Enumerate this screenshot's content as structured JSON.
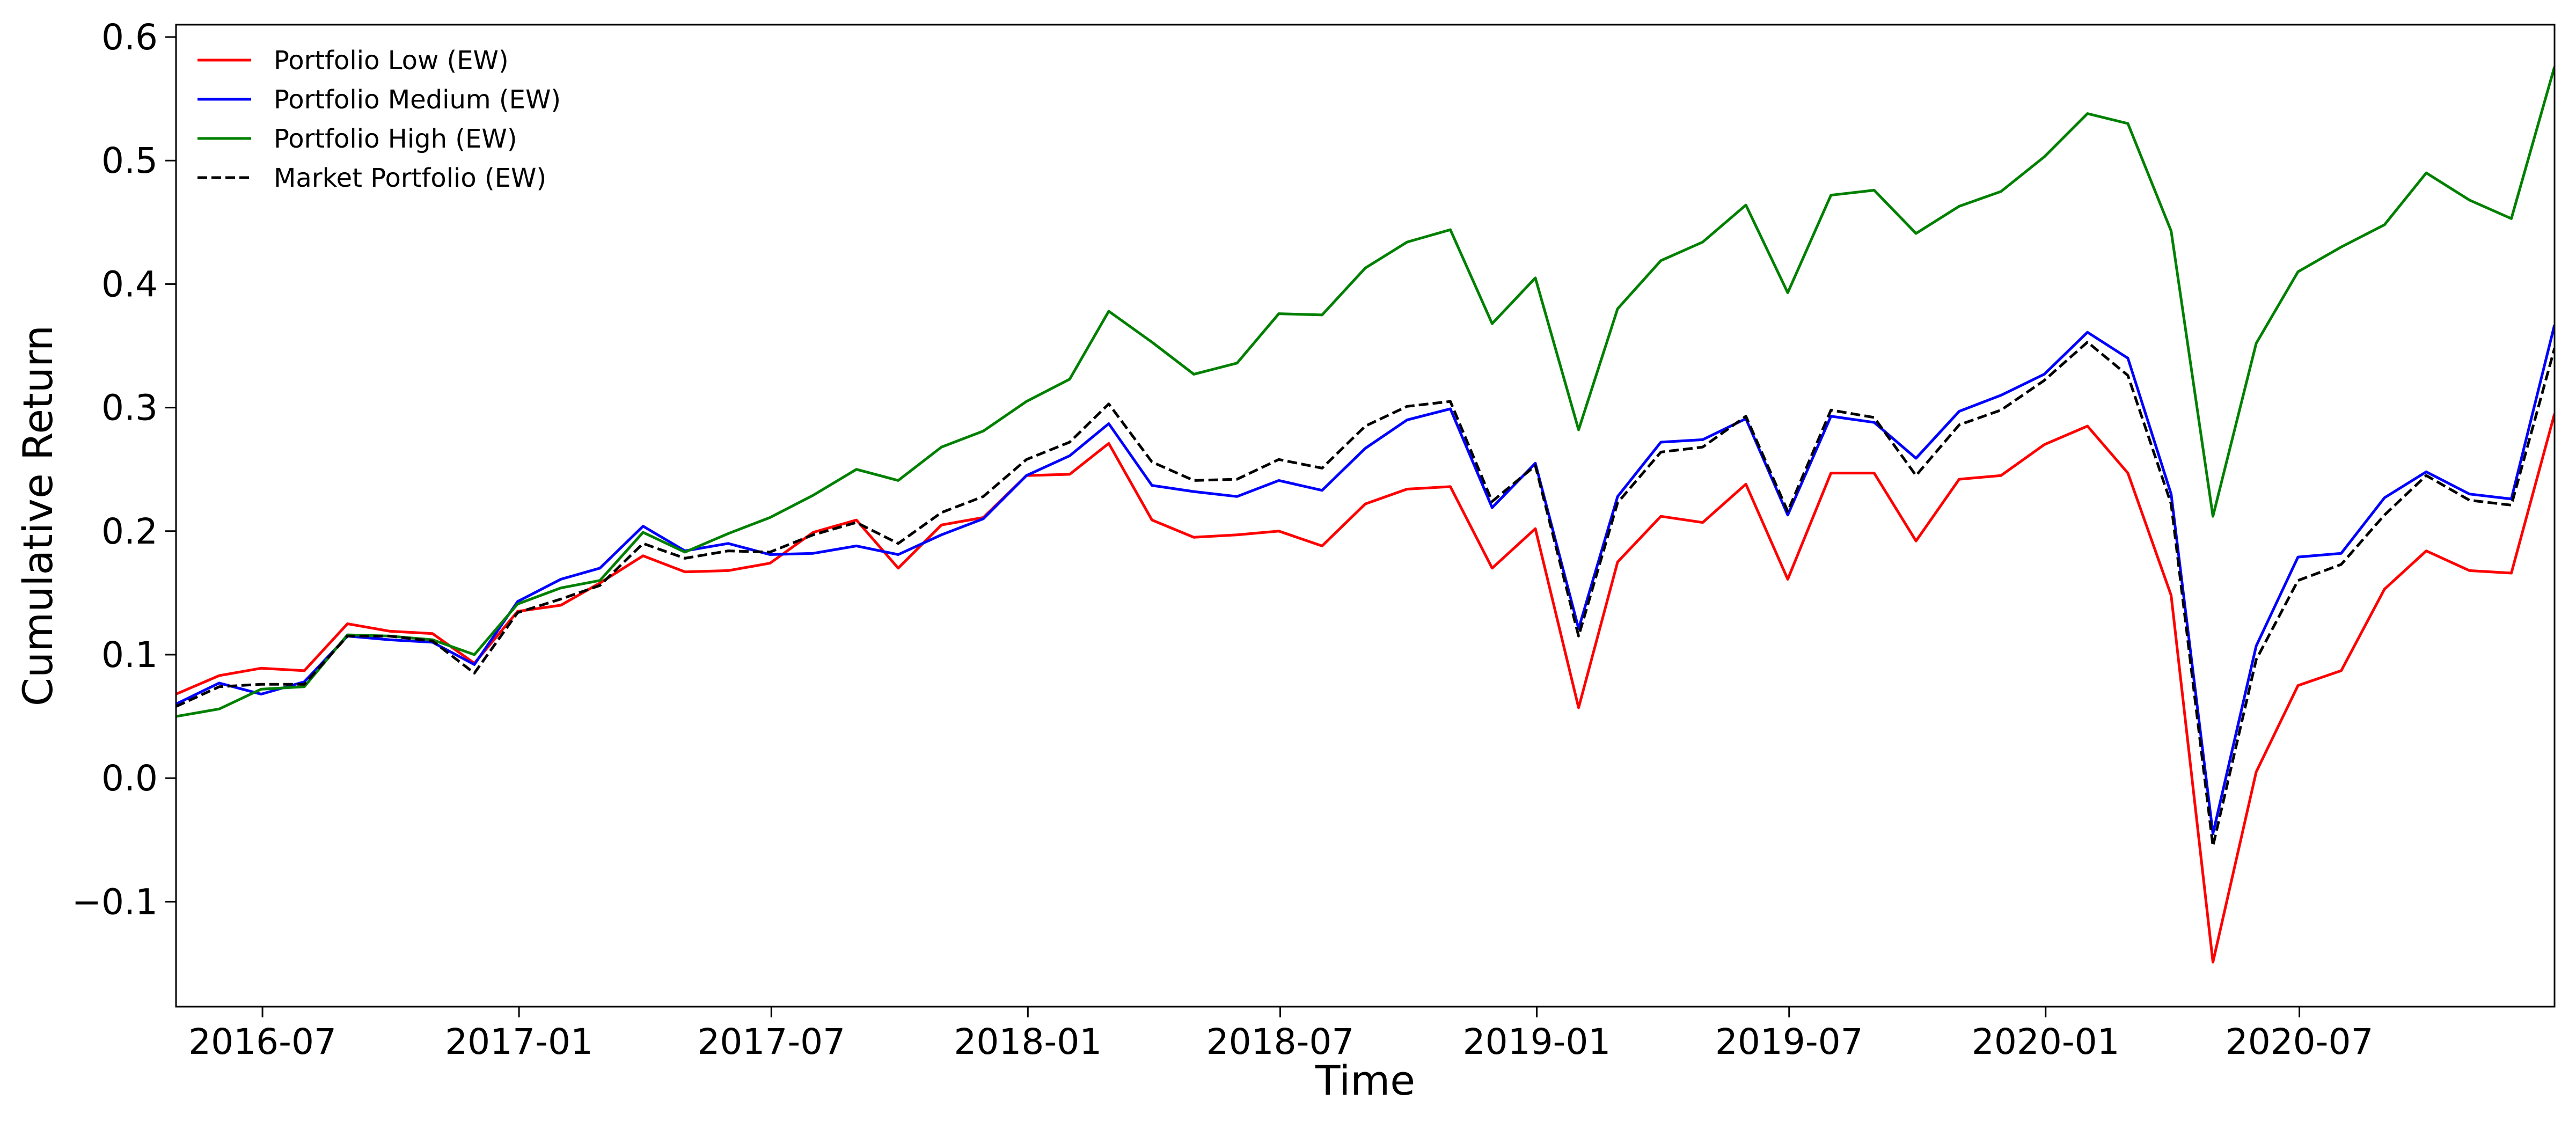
{
  "chart_data": {
    "type": "line",
    "title": "",
    "xlabel": "Time",
    "ylabel": "Cumulative Return",
    "x": [
      "2016-04-30",
      "2016-05-31",
      "2016-06-30",
      "2016-07-31",
      "2016-08-31",
      "2016-09-30",
      "2016-10-31",
      "2016-11-30",
      "2016-12-31",
      "2017-01-31",
      "2017-02-28",
      "2017-03-31",
      "2017-04-30",
      "2017-05-31",
      "2017-06-30",
      "2017-07-31",
      "2017-08-31",
      "2017-09-30",
      "2017-10-31",
      "2017-11-30",
      "2017-12-31",
      "2018-01-31",
      "2018-02-28",
      "2018-03-31",
      "2018-04-30",
      "2018-05-31",
      "2018-06-30",
      "2018-07-31",
      "2018-08-31",
      "2018-09-30",
      "2018-10-31",
      "2018-11-30",
      "2018-12-31",
      "2019-01-31",
      "2019-02-28",
      "2019-03-31",
      "2019-04-30",
      "2019-05-31",
      "2019-06-30",
      "2019-07-31",
      "2019-08-31",
      "2019-09-30",
      "2019-10-31",
      "2019-11-30",
      "2019-12-31",
      "2020-01-31",
      "2020-02-29",
      "2020-03-31",
      "2020-04-30",
      "2020-05-31",
      "2020-06-30",
      "2020-07-31",
      "2020-08-31",
      "2020-09-30",
      "2020-10-31",
      "2020-11-30",
      "2020-12-31"
    ],
    "series": [
      {
        "name": "Portfolio Low (EW)",
        "color": "#ff0000",
        "dash": "solid",
        "values": [
          0.068,
          0.083,
          0.089,
          0.087,
          0.125,
          0.119,
          0.117,
          0.093,
          0.135,
          0.14,
          0.158,
          0.18,
          0.167,
          0.168,
          0.174,
          0.199,
          0.209,
          0.17,
          0.205,
          0.211,
          0.245,
          0.246,
          0.271,
          0.209,
          0.195,
          0.197,
          0.2,
          0.188,
          0.222,
          0.234,
          0.236,
          0.17,
          0.202,
          0.057,
          0.175,
          0.212,
          0.207,
          0.238,
          0.161,
          0.247,
          0.247,
          0.192,
          0.242,
          0.245,
          0.27,
          0.285,
          0.247,
          0.148,
          -0.149,
          0.005,
          0.075,
          0.087,
          0.153,
          0.184,
          0.168,
          0.166,
          0.295
        ]
      },
      {
        "name": "Portfolio Medium (EW)",
        "color": "#0000ff",
        "dash": "solid",
        "values": [
          0.06,
          0.077,
          0.068,
          0.078,
          0.115,
          0.112,
          0.11,
          0.092,
          0.143,
          0.161,
          0.17,
          0.204,
          0.184,
          0.19,
          0.181,
          0.182,
          0.188,
          0.181,
          0.197,
          0.21,
          0.245,
          0.261,
          0.287,
          0.237,
          0.232,
          0.228,
          0.241,
          0.233,
          0.267,
          0.29,
          0.299,
          0.219,
          0.255,
          0.121,
          0.228,
          0.272,
          0.274,
          0.291,
          0.213,
          0.293,
          0.288,
          0.259,
          0.297,
          0.31,
          0.327,
          0.361,
          0.34,
          0.23,
          -0.045,
          0.107,
          0.179,
          0.182,
          0.227,
          0.248,
          0.23,
          0.226,
          0.367
        ]
      },
      {
        "name": "Portfolio High (EW)",
        "color": "#008000",
        "dash": "solid",
        "values": [
          0.05,
          0.056,
          0.072,
          0.074,
          0.116,
          0.115,
          0.112,
          0.1,
          0.141,
          0.154,
          0.16,
          0.199,
          0.183,
          0.198,
          0.211,
          0.229,
          0.25,
          0.241,
          0.268,
          0.281,
          0.305,
          0.323,
          0.378,
          0.353,
          0.327,
          0.336,
          0.376,
          0.375,
          0.413,
          0.434,
          0.444,
          0.368,
          0.405,
          0.282,
          0.38,
          0.419,
          0.434,
          0.464,
          0.393,
          0.472,
          0.476,
          0.441,
          0.463,
          0.475,
          0.503,
          0.538,
          0.53,
          0.443,
          0.212,
          0.352,
          0.41,
          0.43,
          0.448,
          0.49,
          0.468,
          0.453,
          0.576
        ]
      },
      {
        "name": "Market Portfolio (EW)",
        "color": "#000000",
        "dash": "dashed",
        "values": [
          0.058,
          0.074,
          0.076,
          0.076,
          0.115,
          0.115,
          0.111,
          0.085,
          0.134,
          0.145,
          0.156,
          0.19,
          0.178,
          0.184,
          0.183,
          0.197,
          0.207,
          0.19,
          0.215,
          0.228,
          0.258,
          0.272,
          0.303,
          0.256,
          0.241,
          0.242,
          0.258,
          0.251,
          0.285,
          0.301,
          0.305,
          0.224,
          0.253,
          0.115,
          0.223,
          0.264,
          0.268,
          0.293,
          0.216,
          0.298,
          0.292,
          0.245,
          0.286,
          0.298,
          0.322,
          0.353,
          0.326,
          0.222,
          -0.055,
          0.096,
          0.16,
          0.173,
          0.213,
          0.245,
          0.225,
          0.221,
          0.348
        ]
      }
    ],
    "xlim": [
      "2016-04-30",
      "2020-12-31"
    ],
    "ylim": [
      -0.185,
      0.61
    ],
    "xticks": [
      {
        "date": "2016-07-01",
        "label": "2016-07"
      },
      {
        "date": "2017-01-01",
        "label": "2017-01"
      },
      {
        "date": "2017-07-01",
        "label": "2017-07"
      },
      {
        "date": "2018-01-01",
        "label": "2018-01"
      },
      {
        "date": "2018-07-01",
        "label": "2018-07"
      },
      {
        "date": "2019-01-01",
        "label": "2019-01"
      },
      {
        "date": "2019-07-01",
        "label": "2019-07"
      },
      {
        "date": "2020-01-01",
        "label": "2020-01"
      },
      {
        "date": "2020-07-01",
        "label": "2020-07"
      }
    ],
    "yticks": [
      {
        "value": -0.1,
        "label": "−0.1"
      },
      {
        "value": 0.0,
        "label": "0.0"
      },
      {
        "value": 0.1,
        "label": "0.1"
      },
      {
        "value": 0.2,
        "label": "0.2"
      },
      {
        "value": 0.3,
        "label": "0.3"
      },
      {
        "value": 0.4,
        "label": "0.4"
      },
      {
        "value": 0.5,
        "label": "0.5"
      },
      {
        "value": 0.6,
        "label": "0.6"
      }
    ],
    "grid": false,
    "legend_position": "top-left"
  }
}
